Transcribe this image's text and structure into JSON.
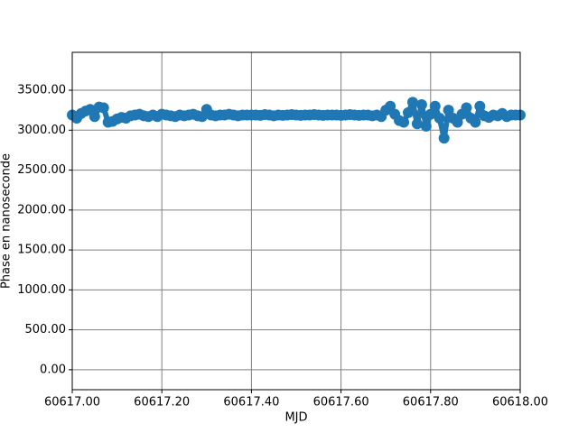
{
  "chart_data": {
    "type": "line",
    "markers": true,
    "color": "#1f77b4",
    "grid": true,
    "xlabel": "MJD",
    "ylabel": "Phase en nanoseconde",
    "x": [
      60617.0,
      60617.01,
      60617.02,
      60617.03,
      60617.04,
      60617.05,
      60617.06,
      60617.07,
      60617.08,
      60617.09,
      60617.1,
      60617.11,
      60617.12,
      60617.13,
      60617.14,
      60617.15,
      60617.16,
      60617.17,
      60617.18,
      60617.19,
      60617.2,
      60617.21,
      60617.22,
      60617.23,
      60617.24,
      60617.25,
      60617.26,
      60617.27,
      60617.28,
      60617.29,
      60617.3,
      60617.31,
      60617.32,
      60617.33,
      60617.34,
      60617.35,
      60617.36,
      60617.37,
      60617.38,
      60617.39,
      60617.4,
      60617.41,
      60617.42,
      60617.43,
      60617.44,
      60617.45,
      60617.46,
      60617.47,
      60617.48,
      60617.49,
      60617.5,
      60617.51,
      60617.52,
      60617.53,
      60617.54,
      60617.55,
      60617.56,
      60617.57,
      60617.58,
      60617.59,
      60617.6,
      60617.61,
      60617.62,
      60617.63,
      60617.64,
      60617.65,
      60617.66,
      60617.67,
      60617.68,
      60617.69,
      60617.7,
      60617.71,
      60617.72,
      60617.73,
      60617.74,
      60617.75,
      60617.76,
      60617.77,
      60617.78,
      60617.79,
      60617.8,
      60617.81,
      60617.82,
      60617.83,
      60617.84,
      60617.85,
      60617.86,
      60617.87,
      60617.88,
      60617.89,
      60617.9,
      60617.91,
      60617.92,
      60617.93,
      60617.94,
      60617.95,
      60617.96,
      60617.97,
      60617.98,
      60617.99,
      60618.0
    ],
    "values": [
      3190,
      3150,
      3210,
      3240,
      3260,
      3170,
      3290,
      3280,
      3100,
      3110,
      3140,
      3160,
      3150,
      3180,
      3190,
      3200,
      3180,
      3170,
      3190,
      3170,
      3200,
      3190,
      3180,
      3170,
      3190,
      3180,
      3190,
      3200,
      3180,
      3170,
      3260,
      3190,
      3180,
      3190,
      3190,
      3200,
      3190,
      3180,
      3190,
      3190,
      3190,
      3190,
      3185,
      3195,
      3190,
      3180,
      3190,
      3185,
      3190,
      3195,
      3190,
      3185,
      3190,
      3190,
      3195,
      3190,
      3185,
      3190,
      3190,
      3190,
      3185,
      3190,
      3195,
      3190,
      3185,
      3190,
      3190,
      3180,
      3190,
      3170,
      3250,
      3300,
      3200,
      3120,
      3100,
      3220,
      3350,
      3080,
      3320,
      3050,
      3200,
      3300,
      3150,
      2900,
      3250,
      3150,
      3100,
      3200,
      3280,
      3150,
      3100,
      3300,
      3180,
      3160,
      3190,
      3180,
      3210,
      3170,
      3190,
      3190,
      3190
    ],
    "xlim": [
      60617.0,
      60618.0
    ],
    "xticks": [
      {
        "value": 60617.0,
        "label": "60617.00"
      },
      {
        "value": 60617.2,
        "label": "60617.20"
      },
      {
        "value": 60617.4,
        "label": "60617.40"
      },
      {
        "value": 60617.6,
        "label": "60617.60"
      },
      {
        "value": 60617.8,
        "label": "60617.80"
      },
      {
        "value": 60618.0,
        "label": "60618.00"
      }
    ],
    "ylim": [
      -250,
      3975
    ],
    "yticks": [
      {
        "value": 0,
        "label": "0.00"
      },
      {
        "value": 500,
        "label": "500.00"
      },
      {
        "value": 1000,
        "label": "1000.00"
      },
      {
        "value": 1500,
        "label": "1500.00"
      },
      {
        "value": 2000,
        "label": "2000.00"
      },
      {
        "value": 2500,
        "label": "2500.00"
      },
      {
        "value": 3000,
        "label": "3000.00"
      },
      {
        "value": 3500,
        "label": "3500.00"
      }
    ]
  }
}
